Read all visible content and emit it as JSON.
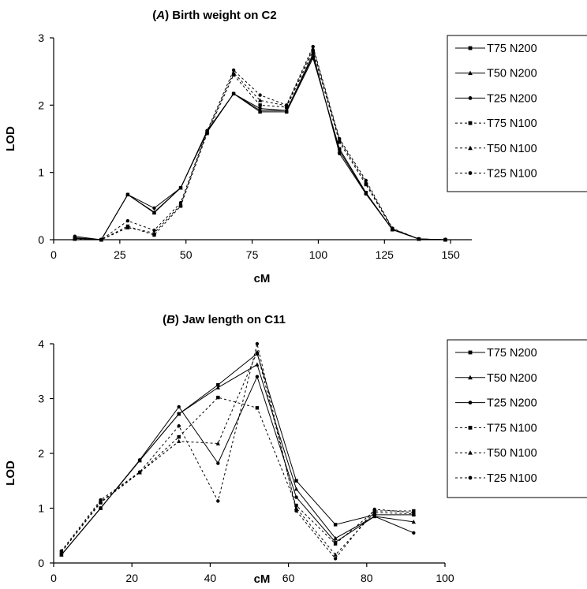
{
  "chart_data": [
    {
      "type": "line",
      "title_prefix": "(",
      "title_letter": "A",
      "title_suffix": ") Birth weight on C2",
      "xlabel": "cM",
      "ylabel": "LOD",
      "xlim": [
        0,
        158
      ],
      "ylim": [
        0,
        3
      ],
      "xticks": [
        "0",
        "25",
        "50",
        "75",
        "100",
        "125",
        "150"
      ],
      "yticks": [
        "0",
        "1",
        "2",
        "3"
      ],
      "legend_position": "right",
      "x": [
        8,
        18,
        28,
        38,
        48,
        58,
        68,
        78,
        88,
        98,
        108,
        118,
        128,
        138,
        148
      ],
      "series": [
        {
          "name": "T75 N200",
          "style": "solid",
          "marker": "square",
          "values": [
            0.02,
            0.0,
            0.67,
            0.4,
            0.77,
            1.6,
            2.17,
            1.9,
            1.9,
            2.7,
            1.35,
            0.7,
            0.15,
            0.01,
            0.0
          ]
        },
        {
          "name": "T50 N200",
          "style": "solid",
          "marker": "triangle",
          "values": [
            0.03,
            0.0,
            0.67,
            0.41,
            0.77,
            1.61,
            2.17,
            1.92,
            1.92,
            2.73,
            1.32,
            0.69,
            0.15,
            0.01,
            0.0
          ]
        },
        {
          "name": "T25 N200",
          "style": "solid",
          "marker": "circle",
          "values": [
            0.05,
            0.0,
            0.67,
            0.47,
            0.77,
            1.62,
            2.17,
            1.95,
            1.92,
            2.76,
            1.28,
            0.68,
            0.15,
            0.01,
            0.0
          ]
        },
        {
          "name": "T75 N100",
          "style": "dotted",
          "marker": "square",
          "values": [
            0.01,
            0.0,
            0.2,
            0.07,
            0.5,
            1.58,
            2.45,
            2.0,
            1.97,
            2.8,
            1.45,
            0.82,
            0.16,
            0.01,
            0.0
          ]
        },
        {
          "name": "T50 N100",
          "style": "dotted",
          "marker": "triangle",
          "values": [
            0.01,
            0.0,
            0.18,
            0.1,
            0.52,
            1.6,
            2.48,
            2.07,
            1.99,
            2.84,
            1.48,
            0.85,
            0.16,
            0.01,
            0.0
          ]
        },
        {
          "name": "T25 N100",
          "style": "dotted",
          "marker": "circle",
          "values": [
            0.01,
            0.0,
            0.28,
            0.14,
            0.55,
            1.62,
            2.52,
            2.15,
            2.0,
            2.87,
            1.5,
            0.88,
            0.17,
            0.01,
            0.0
          ]
        }
      ]
    },
    {
      "type": "line",
      "title_prefix": "(",
      "title_letter": "B",
      "title_suffix": ") Jaw length on C11",
      "xlabel": "cM",
      "ylabel": "LOD",
      "xlim": [
        0,
        100
      ],
      "ylim": [
        0,
        4
      ],
      "xticks": [
        "0",
        "20",
        "40",
        "60",
        "80",
        "100"
      ],
      "yticks": [
        "0",
        "1",
        "2",
        "3",
        "4"
      ],
      "legend_position": "right",
      "x": [
        2,
        12,
        22,
        32,
        42,
        52,
        62,
        72,
        82,
        92
      ],
      "series": [
        {
          "name": "T75 N200",
          "style": "solid",
          "marker": "square",
          "values": [
            0.15,
            1.0,
            1.87,
            2.72,
            3.25,
            3.82,
            1.5,
            0.7,
            0.88,
            0.88
          ]
        },
        {
          "name": "T50 N200",
          "style": "solid",
          "marker": "triangle",
          "values": [
            0.15,
            1.0,
            1.87,
            2.72,
            3.2,
            3.62,
            1.35,
            0.45,
            0.85,
            0.75
          ]
        },
        {
          "name": "T25 N200",
          "style": "solid",
          "marker": "circle",
          "values": [
            0.15,
            1.0,
            1.88,
            2.85,
            1.82,
            3.4,
            1.2,
            0.38,
            0.85,
            0.55
          ]
        },
        {
          "name": "T75 N100",
          "style": "dotted",
          "marker": "square",
          "values": [
            0.2,
            1.1,
            1.65,
            2.3,
            3.02,
            2.83,
            1.05,
            0.35,
            0.95,
            0.95
          ]
        },
        {
          "name": "T50 N100",
          "style": "dotted",
          "marker": "triangle",
          "values": [
            0.2,
            1.12,
            1.65,
            2.22,
            2.18,
            3.85,
            1.0,
            0.15,
            0.92,
            0.9
          ]
        },
        {
          "name": "T25 N100",
          "style": "dotted",
          "marker": "circle",
          "values": [
            0.22,
            1.15,
            1.66,
            2.5,
            1.13,
            4.0,
            0.95,
            0.08,
            0.98,
            0.92
          ]
        }
      ]
    }
  ]
}
